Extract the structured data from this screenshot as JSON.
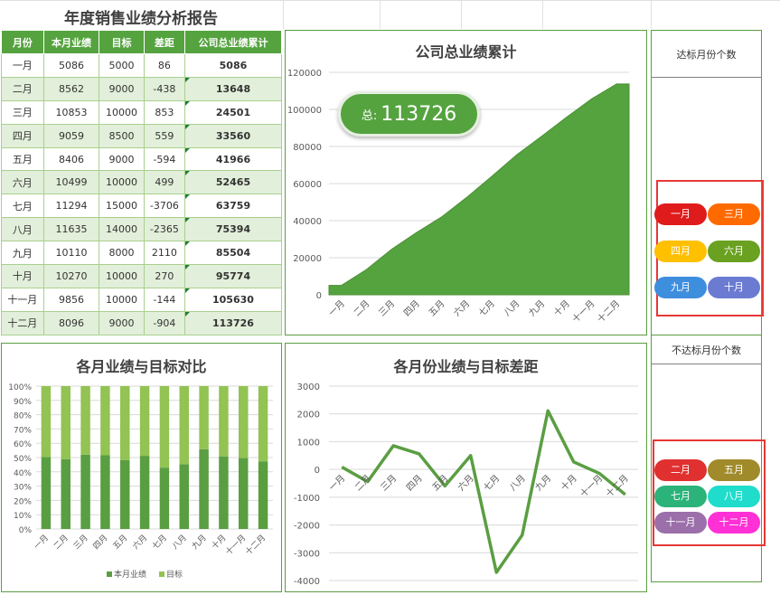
{
  "report_title": "年度销售业绩分析报告",
  "table": {
    "headers": [
      "月份",
      "本月业绩",
      "目标",
      "差距",
      "公司总业绩累计"
    ],
    "rows": [
      [
        "一月",
        "5086",
        "5000",
        "86",
        "5086"
      ],
      [
        "二月",
        "8562",
        "9000",
        "-438",
        "13648"
      ],
      [
        "三月",
        "10853",
        "10000",
        "853",
        "24501"
      ],
      [
        "四月",
        "9059",
        "8500",
        "559",
        "33560"
      ],
      [
        "五月",
        "8406",
        "9000",
        "-594",
        "41966"
      ],
      [
        "六月",
        "10499",
        "10000",
        "499",
        "52465"
      ],
      [
        "七月",
        "11294",
        "15000",
        "-3706",
        "63759"
      ],
      [
        "八月",
        "11635",
        "14000",
        "-2365",
        "75394"
      ],
      [
        "九月",
        "10110",
        "8000",
        "2110",
        "85504"
      ],
      [
        "十月",
        "10270",
        "10000",
        "270",
        "95774"
      ],
      [
        "十一月",
        "9856",
        "10000",
        "-144",
        "105630"
      ],
      [
        "十二月",
        "8096",
        "9000",
        "-904",
        "113726"
      ]
    ]
  },
  "total": {
    "label": "总:",
    "value": "113726"
  },
  "side": {
    "met_title": "达标月份个数",
    "met_months": [
      {
        "label": "一月",
        "color": "#e01b1b"
      },
      {
        "label": "三月",
        "color": "#ff6a00"
      },
      {
        "label": "四月",
        "color": "#ffc000"
      },
      {
        "label": "六月",
        "color": "#6aa121"
      },
      {
        "label": "九月",
        "color": "#3e8ede"
      },
      {
        "label": "十月",
        "color": "#6b7bd1"
      }
    ],
    "unmet_title": "不达标月份个数",
    "unmet_months": [
      {
        "label": "二月",
        "color": "#e03030"
      },
      {
        "label": "五月",
        "color": "#a08a2a"
      },
      {
        "label": "七月",
        "color": "#2bb37a"
      },
      {
        "label": "八月",
        "color": "#20dccb"
      },
      {
        "label": "十一月",
        "color": "#9b6fa9"
      },
      {
        "label": "十二月",
        "color": "#ff30d5"
      }
    ]
  },
  "chart_data": [
    {
      "type": "area",
      "title": "公司总业绩累计",
      "categories": [
        "一月",
        "二月",
        "三月",
        "四月",
        "五月",
        "六月",
        "七月",
        "八月",
        "九月",
        "十月",
        "十一月",
        "十二月"
      ],
      "values": [
        5086,
        13648,
        24501,
        33560,
        41966,
        52465,
        63759,
        75394,
        85504,
        95774,
        105630,
        113726
      ],
      "ylim": [
        0,
        120000
      ],
      "yticks": [
        0,
        20000,
        40000,
        60000,
        80000,
        100000,
        120000
      ],
      "color": "#55a33f",
      "grid": true
    },
    {
      "type": "bar",
      "stacked_percent": true,
      "title": "各月业绩与目标对比",
      "categories": [
        "一月",
        "二月",
        "三月",
        "四月",
        "五月",
        "六月",
        "七月",
        "八月",
        "九月",
        "十月",
        "十一月",
        "十二月"
      ],
      "series": [
        {
          "name": "本月业绩",
          "values": [
            5086,
            8562,
            10853,
            9059,
            8406,
            10499,
            11294,
            11635,
            10110,
            10270,
            9856,
            8096
          ],
          "color": "#5a9e42"
        },
        {
          "name": "目标",
          "values": [
            5000,
            9000,
            10000,
            8500,
            9000,
            10000,
            15000,
            14000,
            8000,
            10000,
            10000,
            9000
          ],
          "color": "#92c353"
        }
      ],
      "yticks": [
        "0%",
        "10%",
        "20%",
        "30%",
        "40%",
        "50%",
        "60%",
        "70%",
        "80%",
        "90%",
        "100%"
      ],
      "legend": "bottom",
      "grid": true
    },
    {
      "type": "line",
      "title": "各月份业绩与目标差距",
      "categories": [
        "一月",
        "二月",
        "三月",
        "四月",
        "五月",
        "六月",
        "七月",
        "八月",
        "九月",
        "十月",
        "十一月",
        "十二月"
      ],
      "values": [
        86,
        -438,
        853,
        559,
        -594,
        499,
        -3706,
        -2365,
        2110,
        270,
        -144,
        -904
      ],
      "ylim": [
        -4000,
        3000
      ],
      "yticks": [
        -4000,
        -3000,
        -2000,
        -1000,
        0,
        1000,
        2000,
        3000
      ],
      "color": "#5a9e42",
      "grid": true
    }
  ]
}
